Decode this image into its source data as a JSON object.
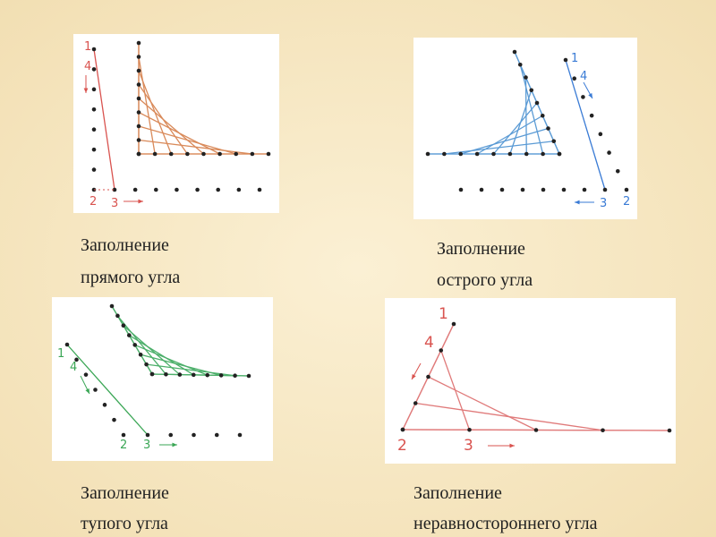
{
  "panels": [
    {
      "caption": [
        "Заполнение",
        "прямого угла"
      ],
      "labels": [
        "1",
        "4",
        "2",
        "3"
      ]
    },
    {
      "caption": [
        "Заполнение",
        "острого угла"
      ],
      "labels": [
        "1",
        "4",
        "3",
        "2"
      ]
    },
    {
      "caption": [
        "Заполнение",
        "тупого угла"
      ],
      "labels": [
        "1",
        "4",
        "2",
        "3"
      ]
    },
    {
      "caption": [
        "Заполнение",
        "неравностороннего угла"
      ],
      "labels": [
        "1",
        "4",
        "2",
        "3"
      ]
    }
  ]
}
